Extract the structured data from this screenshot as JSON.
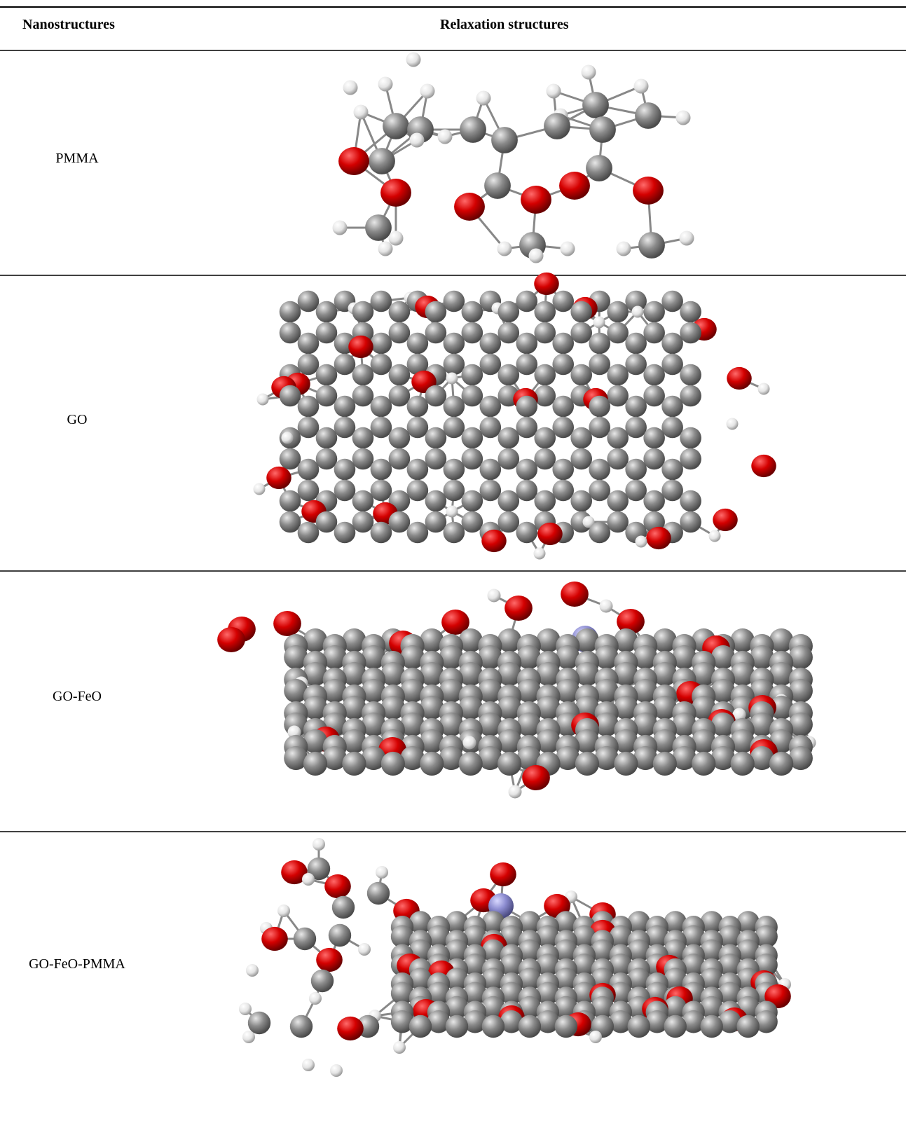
{
  "table": {
    "header": [
      "Nanostructures",
      "Relaxation structures"
    ],
    "rows": [
      [
        "PMMA"
      ],
      [
        "GO"
      ],
      [
        "GO-FeO"
      ],
      [
        "GO-FeO-PMMA"
      ]
    ]
  }
}
